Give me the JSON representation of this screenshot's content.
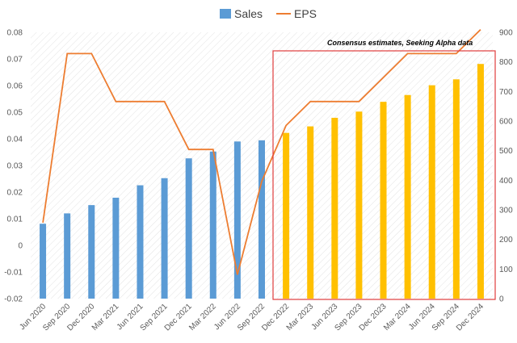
{
  "chart_data": {
    "type": "bar+line",
    "categories": [
      "Jun 2020",
      "Sep 2020",
      "Dec 2020",
      "Mar 2021",
      "Jun 2021",
      "Sep 2021",
      "Dec 2021",
      "Mar 2022",
      "Jun 2022",
      "Sep 2022",
      "Dec 2022",
      "Mar 2023",
      "Jun 2023",
      "Sep 2023",
      "Dec 2023",
      "Mar 2024",
      "Jun 2024",
      "Sep 2024",
      "Dec 2024"
    ],
    "series": [
      {
        "name": "Sales",
        "type": "bar",
        "axis": "right",
        "values": [
          253,
          288,
          316,
          341,
          383,
          407,
          474,
          497,
          531,
          535,
          560,
          582,
          611,
          632,
          665,
          688,
          721,
          741,
          793
        ],
        "estimate_from_index": 10
      },
      {
        "name": "EPS",
        "type": "line",
        "axis": "left",
        "values": [
          0.0085,
          0.072,
          0.072,
          0.054,
          0.054,
          0.054,
          0.036,
          0.036,
          -0.011,
          0.024,
          0.045,
          0.054,
          0.054,
          0.054,
          0.063,
          0.072,
          0.072,
          0.072,
          0.081
        ]
      }
    ],
    "y_left": {
      "min": -0.02,
      "max": 0.08,
      "ticks": [
        "-0.02",
        "-0.01",
        "0",
        "0.01",
        "0.02",
        "0.03",
        "0.04",
        "0.05",
        "0.06",
        "0.07",
        "0.08"
      ]
    },
    "y_right": {
      "min": 0,
      "max": 900,
      "ticks": [
        "0",
        "100",
        "200",
        "300",
        "400",
        "500",
        "600",
        "700",
        "800",
        "900"
      ]
    },
    "annotation": "Consensus estimates, Seeking Alpha data",
    "legend_position": "top-center",
    "grid": false,
    "colors": {
      "sales_actual": "#5B9BD5",
      "sales_estimate": "#FFC000",
      "eps": "#ED7D31",
      "box": "#E03C3C"
    }
  }
}
